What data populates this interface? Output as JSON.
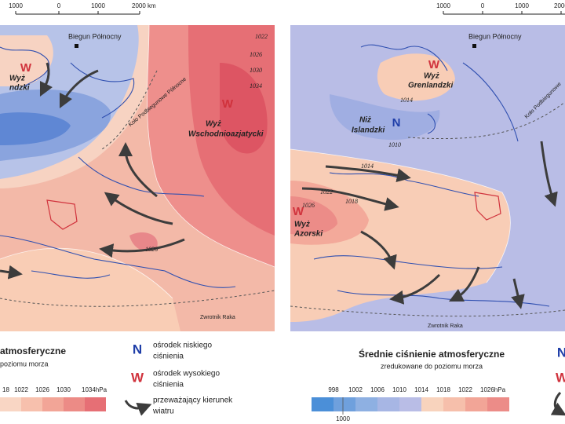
{
  "left_map": {
    "scale": [
      "1000",
      "0",
      "1000",
      "2000 km"
    ],
    "pole": "Biegun Północny",
    "high_greenland": [
      "Wyż",
      "ndzki"
    ],
    "high_east": [
      "Wyż",
      "Wschodnioazjatycki"
    ],
    "arctic": "Koło Podbiegunowe Północne",
    "tropic": "Zwrotnik Raka",
    "isobars": [
      1022,
      1026,
      1030,
      1034,
      1026
    ]
  },
  "left_legend": {
    "title": [
      "atmosferyczne",
      "poziomu morza"
    ],
    "scale": [
      "18",
      "1022",
      "1026",
      "1030",
      "1034hPa"
    ]
  },
  "key": {
    "low_symbol": "N",
    "low": [
      "ośrodek niskiego",
      "ciśnienia"
    ],
    "high_symbol": "W",
    "high": [
      "ośrodek wysokiego",
      "ciśnienia"
    ],
    "wind": [
      "przeważający kierunek",
      "wiatru"
    ]
  },
  "right_map": {
    "scale": [
      "1000",
      "0",
      "1000",
      "2000"
    ],
    "pole": "Biegun Północny",
    "high_greenland": [
      "Wyż",
      "Grenlandzki"
    ],
    "low_iceland": [
      "Niż",
      "Islandzki"
    ],
    "high_azores": [
      "Wyż",
      "Azorski"
    ],
    "arctic": "Koło Podbiegunowe",
    "tropic": "Zwrotnik Raka",
    "isobars": [
      1014,
      1010,
      1014,
      1022,
      1018,
      1026
    ]
  },
  "right_legend": {
    "title": [
      "Średnie ciśnienie atmosferyczne",
      "zredukowane do poziomu morza"
    ],
    "scale": [
      "998",
      "1002",
      "1006",
      "1010",
      "1014",
      "1018",
      "1022",
      "1026hPa"
    ],
    "extra": "1000"
  }
}
